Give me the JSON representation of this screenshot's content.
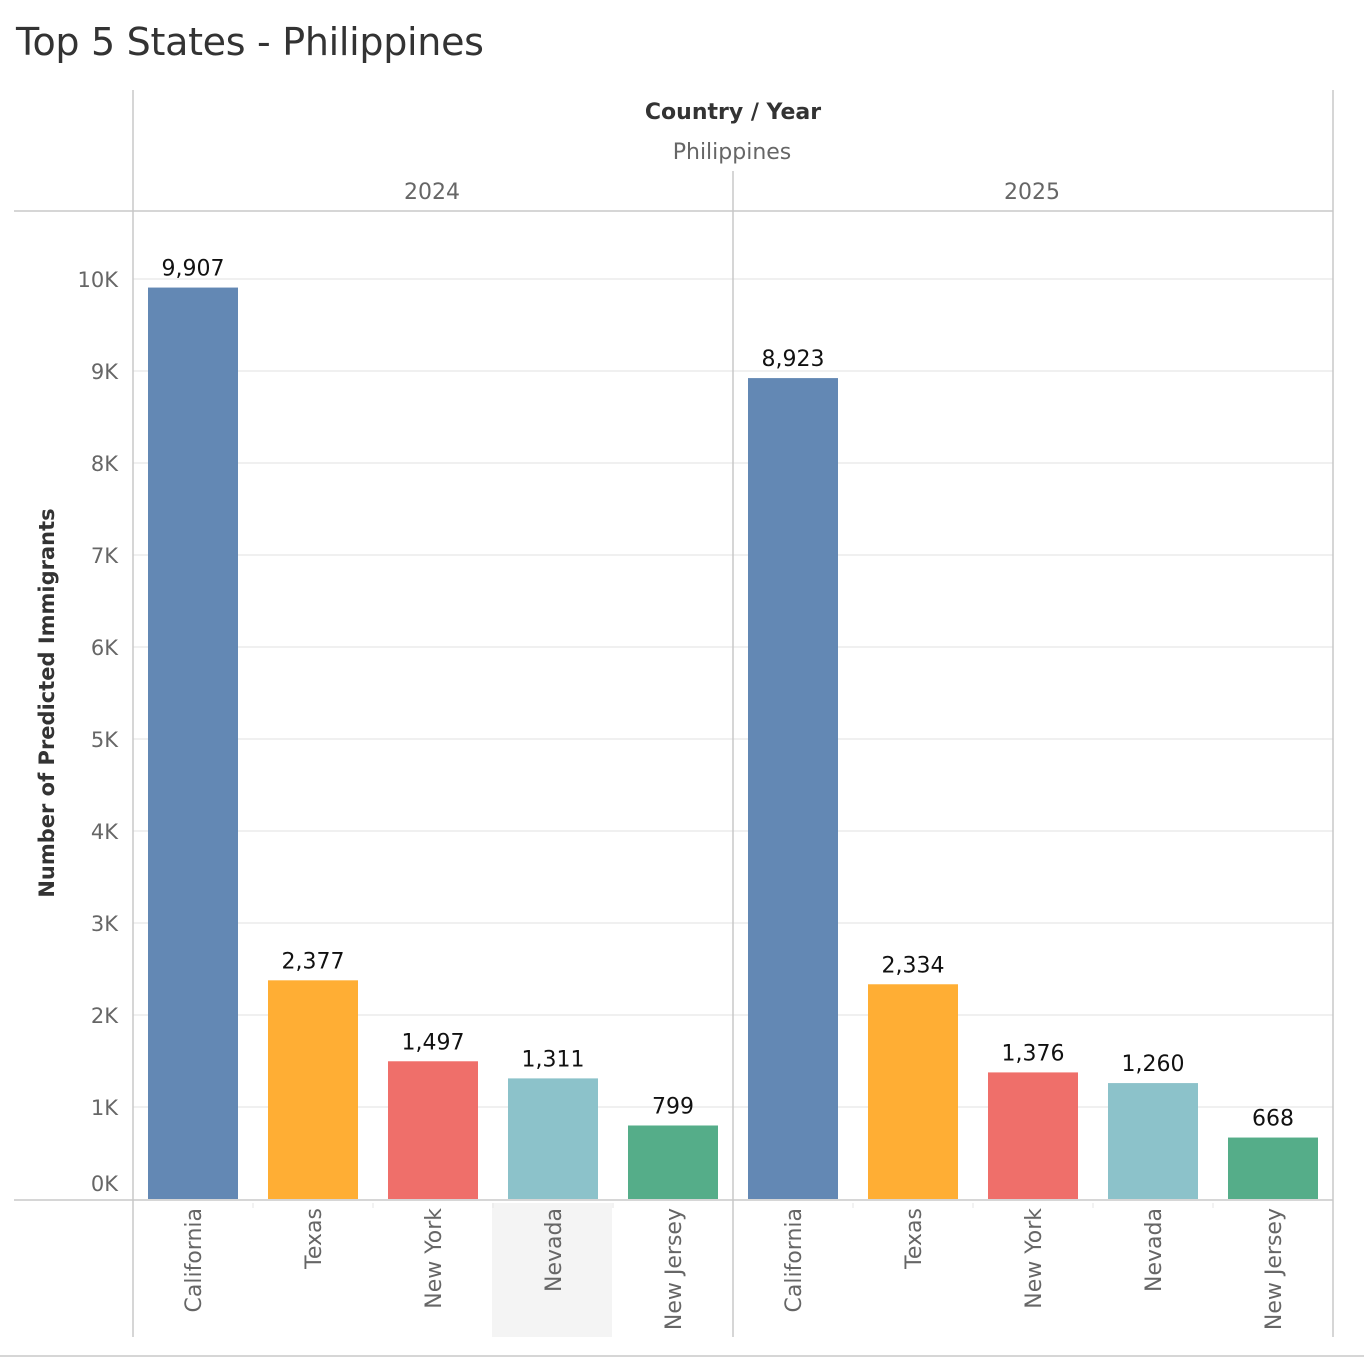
{
  "title": "Top 5 States - Philippines",
  "header": {
    "dimension_label": "Country / Year",
    "country": "Philippines",
    "years": [
      "2024",
      "2025"
    ]
  },
  "chart_data": {
    "type": "bar",
    "title": "Top 5 States - Philippines",
    "ylabel": "Number of Predicted Immigrants",
    "xlabel": "",
    "ylim": [
      0,
      10500
    ],
    "yticks": [
      0,
      1000,
      2000,
      3000,
      4000,
      5000,
      6000,
      7000,
      8000,
      9000,
      10000
    ],
    "ytick_labels": [
      "0K",
      "1K",
      "2K",
      "3K",
      "4K",
      "5K",
      "6K",
      "7K",
      "8K",
      "9K",
      "10K"
    ],
    "grid": true,
    "categories": [
      "California",
      "Texas",
      "New York",
      "Nevada",
      "New Jersey"
    ],
    "panels": [
      {
        "country": "Philippines",
        "year": "2024",
        "values": [
          9907,
          2377,
          1497,
          1311,
          799
        ],
        "labels": [
          "9,907",
          "2,377",
          "1,497",
          "1,311",
          "799"
        ]
      },
      {
        "country": "Philippines",
        "year": "2025",
        "values": [
          8923,
          2334,
          1376,
          1260,
          668
        ],
        "labels": [
          "8,923",
          "2,334",
          "1,376",
          "1,260",
          "668"
        ]
      }
    ],
    "colors": [
      "#6388b4",
      "#ffae34",
      "#ef6f6a",
      "#8cc2ca",
      "#55ad89"
    ],
    "highlighted_category": "Nevada",
    "highlighted_panel": "2024"
  }
}
